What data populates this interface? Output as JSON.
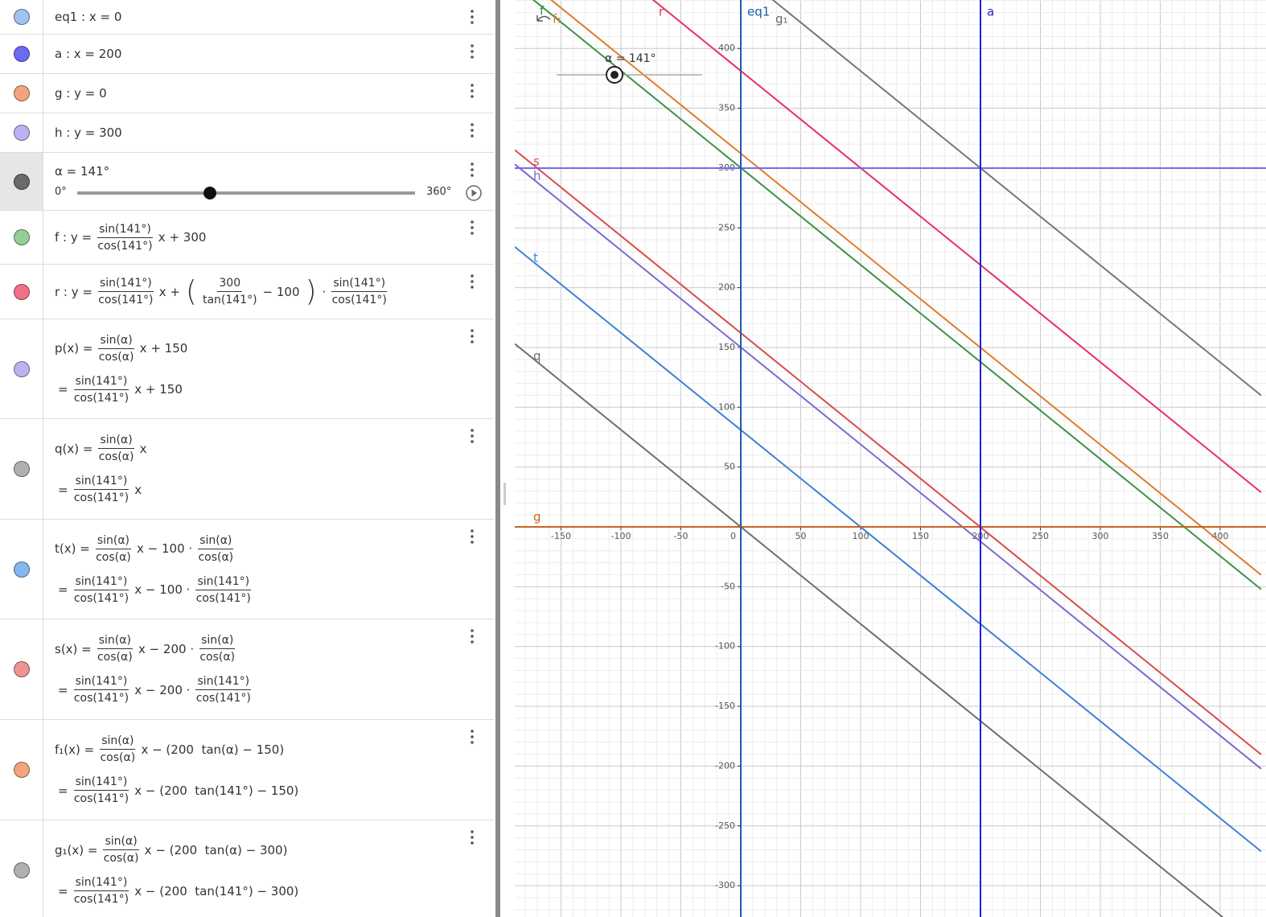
{
  "algebra": {
    "items": [
      {
        "color": "#9ec3f0",
        "rows": [
          [
            "eq1 : x = 0"
          ]
        ]
      },
      {
        "color": "#6a6af5",
        "rows": [
          [
            "a : x = 200"
          ]
        ]
      },
      {
        "color": "#f2a57c",
        "rows": [
          [
            "g : y = 0"
          ]
        ]
      },
      {
        "color": "#bcb2f0",
        "rows": [
          [
            "h : y = 300"
          ]
        ]
      },
      {
        "color": "#6a6a6a",
        "rows": [
          [
            "α = 141°"
          ]
        ],
        "slider": {
          "value": 141,
          "min": {
            "value": 0,
            "label": "0°"
          },
          "max": {
            "value": 360,
            "label": "360°"
          }
        }
      },
      {
        "color": "#95cf95",
        "rows": [
          [
            "f : y =",
            {
              "num": "sin(141°)",
              "den": "cos(141°)"
            },
            "x + 300"
          ]
        ]
      },
      {
        "color": "#f07088",
        "rows": [
          [
            "r : y =",
            {
              "num": "sin(141°)",
              "den": "cos(141°)"
            },
            "x +",
            {
              "big": "("
            },
            {
              "num": "300",
              "den": "tan(141°)"
            },
            "− 100",
            {
              "big": ")"
            },
            "·",
            {
              "num": "sin(141°)",
              "den": "cos(141°)"
            }
          ]
        ]
      },
      {
        "color": "#bcb2f0",
        "rows": [
          [
            "p(x) =",
            {
              "num": "sin(α)",
              "den": "cos(α)"
            },
            "x + 150"
          ],
          [
            "=",
            {
              "num": "sin(141°)",
              "den": "cos(141°)"
            },
            "x + 150"
          ]
        ]
      },
      {
        "color": "#b0b0b0",
        "rows": [
          [
            "q(x) =",
            {
              "num": "sin(α)",
              "den": "cos(α)"
            },
            "x"
          ],
          [
            "=",
            {
              "num": "sin(141°)",
              "den": "cos(141°)"
            },
            "x"
          ]
        ]
      },
      {
        "color": "#86b6ee",
        "rows": [
          [
            "t(x) =",
            {
              "num": "sin(α)",
              "den": "cos(α)"
            },
            "x − 100 ·",
            {
              "num": "sin(α)",
              "den": "cos(α)"
            }
          ],
          [
            "=",
            {
              "num": "sin(141°)",
              "den": "cos(141°)"
            },
            "x − 100 ·",
            {
              "num": "sin(141°)",
              "den": "cos(141°)"
            }
          ]
        ]
      },
      {
        "color": "#ee9292",
        "rows": [
          [
            "s(x) =",
            {
              "num": "sin(α)",
              "den": "cos(α)"
            },
            "x − 200 ·",
            {
              "num": "sin(α)",
              "den": "cos(α)"
            }
          ],
          [
            "=",
            {
              "num": "sin(141°)",
              "den": "cos(141°)"
            },
            "x − 200 ·",
            {
              "num": "sin(141°)",
              "den": "cos(141°)"
            }
          ]
        ]
      },
      {
        "color": "#f2a57c",
        "rows": [
          [
            "f₁(x) =",
            {
              "num": "sin(α)",
              "den": "cos(α)"
            },
            "x − (200  tan(α) − 150)"
          ],
          [
            "=",
            {
              "num": "sin(141°)",
              "den": "cos(141°)"
            },
            "x − (200  tan(141°) − 150)"
          ]
        ]
      },
      {
        "color": "#b0b0b0",
        "rows": [
          [
            "g₁(x) =",
            {
              "num": "sin(α)",
              "den": "cos(α)"
            },
            "x − (200  tan(α) − 300)"
          ],
          [
            "=",
            {
              "num": "sin(141°)",
              "den": "cos(141°)"
            },
            "x − (200  tan(141°) − 300)"
          ]
        ]
      }
    ]
  },
  "graphics": {
    "xticks": [
      -150,
      -100,
      -50,
      0,
      50,
      100,
      150,
      200,
      250,
      300,
      350,
      400
    ],
    "yticks": [
      400,
      350,
      300,
      250,
      200,
      150,
      100,
      50,
      -50,
      -100,
      -150,
      -200,
      -250,
      -300
    ],
    "slider_label": "α = 141°",
    "labels": {
      "eq1": "eq1",
      "a": "a",
      "g1": "g₁",
      "r": "r",
      "f": "f",
      "f1": "f₁",
      "s": "s",
      "h": "h",
      "t": "t",
      "q": "q",
      "g": "g"
    }
  }
}
